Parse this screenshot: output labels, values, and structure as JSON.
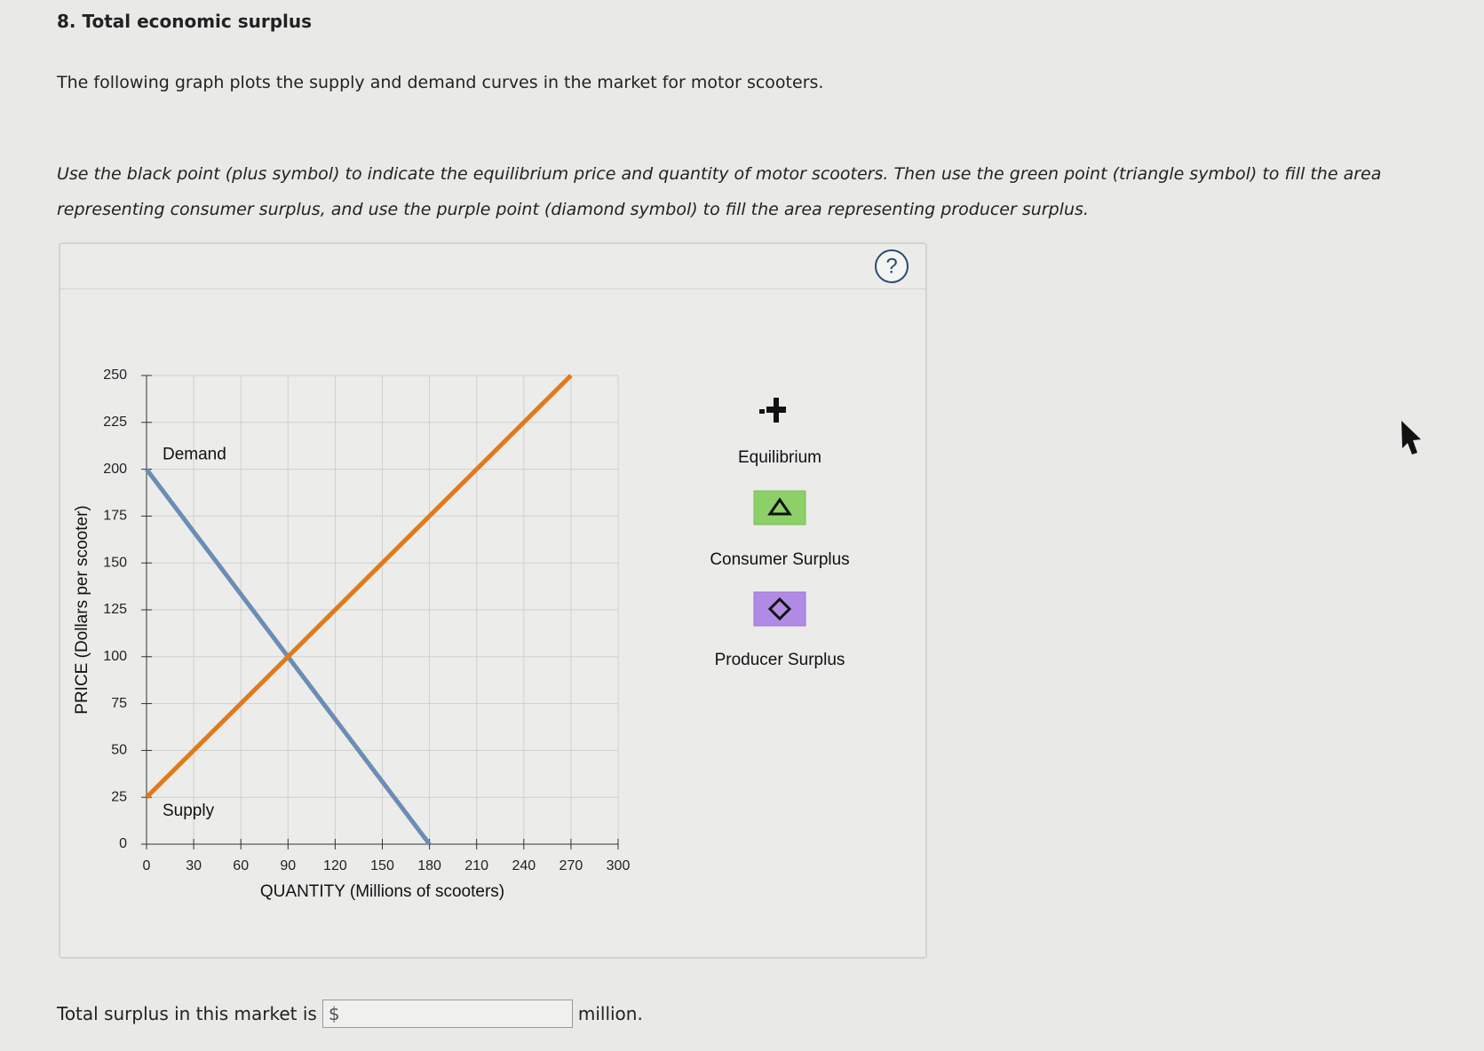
{
  "header": {
    "title": "8. Total economic surplus",
    "intro": "The following graph plots the supply and demand curves in the market for motor scooters.",
    "instructions": "Use the black point (plus symbol) to indicate the equilibrium price and quantity of motor scooters. Then use the green point (triangle symbol) to fill the area representing consumer surplus, and use the purple point (diamond symbol) to fill the area representing producer surplus."
  },
  "help": "?",
  "chart_data": {
    "type": "line",
    "xlabel": "QUANTITY (Millions of scooters)",
    "ylabel": "PRICE (Dollars per scooter)",
    "xlim": [
      0,
      300
    ],
    "xticks": [
      0,
      30,
      60,
      90,
      120,
      150,
      180,
      210,
      240,
      270,
      300
    ],
    "ylim": [
      0,
      250
    ],
    "yticks": [
      0,
      25,
      50,
      75,
      100,
      125,
      150,
      175,
      200,
      225,
      250
    ],
    "grid": true,
    "series": [
      {
        "name": "Demand",
        "color": "#6b8db5",
        "x": [
          0,
          180
        ],
        "values": [
          200,
          0
        ]
      },
      {
        "name": "Supply",
        "color": "#e07a1c",
        "x": [
          0,
          270
        ],
        "values": [
          25,
          250
        ]
      }
    ]
  },
  "palette": {
    "items": [
      "Equilibrium",
      "Consumer Surplus",
      "Producer Surplus"
    ]
  },
  "answer": {
    "prefix": "Total surplus in this market is",
    "currency": "$",
    "suffix": "million."
  }
}
